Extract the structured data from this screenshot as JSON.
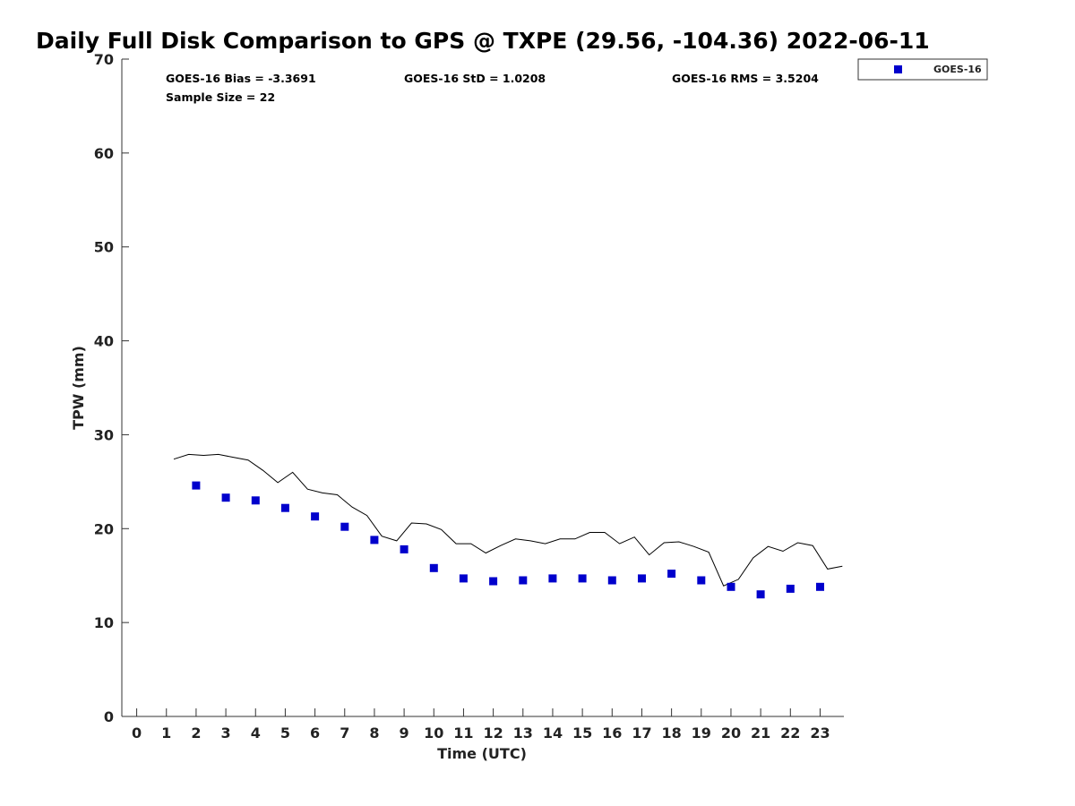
{
  "chart_data": {
    "type": "scatter",
    "title": "Daily Full Disk Comparison to GPS @ TXPE (29.56, -104.36) 2022-06-11",
    "xlabel": "Time (UTC)",
    "ylabel": "TPW (mm)",
    "xlim": [
      -0.5,
      23.8
    ],
    "ylim": [
      0,
      70
    ],
    "x_ticks": [
      "0",
      "1",
      "2",
      "3",
      "4",
      "5",
      "6",
      "7",
      "8",
      "9",
      "10",
      "11",
      "12",
      "13",
      "14",
      "15",
      "16",
      "17",
      "18",
      "19",
      "20",
      "21",
      "22",
      "23"
    ],
    "y_ticks": [
      "0",
      "10",
      "20",
      "30",
      "40",
      "50",
      "60",
      "70"
    ],
    "grid": false,
    "legend_position": "top-right",
    "stats": {
      "bias": "GOES-16 Bias = -3.3691",
      "std": "GOES-16 StD = 1.0208",
      "rms": "GOES-16 RMS = 3.5204",
      "sample": "Sample Size = 22"
    },
    "series": [
      {
        "name": "GOES-16",
        "marker": "square",
        "color": "#0000cc",
        "x": [
          2,
          3,
          4,
          5,
          6,
          7,
          8,
          9,
          10,
          11,
          12,
          13,
          14,
          15,
          16,
          17,
          18,
          19,
          20,
          21,
          22,
          23
        ],
        "y": [
          24.6,
          23.3,
          23.0,
          22.2,
          21.3,
          20.2,
          18.8,
          17.8,
          15.8,
          14.7,
          14.4,
          14.5,
          14.7,
          14.7,
          14.5,
          14.7,
          15.2,
          14.5,
          13.8,
          13.0,
          13.6,
          13.8
        ]
      },
      {
        "marker": "line",
        "color": "#000000",
        "x": [
          1.25,
          1.75,
          2.25,
          2.75,
          3.25,
          3.75,
          4.25,
          4.75,
          5.25,
          5.75,
          6.25,
          6.75,
          7.25,
          7.75,
          8.25,
          8.75,
          9.25,
          9.75,
          10.25,
          10.75,
          11.25,
          11.75,
          12.25,
          12.75,
          13.25,
          13.75,
          14.25,
          14.75,
          15.25,
          15.75,
          16.25,
          16.75,
          17.25,
          17.75,
          18.25,
          18.75,
          19.25,
          19.75,
          20.25,
          20.75,
          21.25,
          21.75,
          22.25,
          22.75,
          23.25,
          23.75
        ],
        "y": [
          27.4,
          27.9,
          27.8,
          27.9,
          27.6,
          27.3,
          26.2,
          24.9,
          26.0,
          24.2,
          23.8,
          23.6,
          22.3,
          21.4,
          19.2,
          18.7,
          20.6,
          20.5,
          19.9,
          18.4,
          18.4,
          17.4,
          18.2,
          18.9,
          18.7,
          18.4,
          18.9,
          18.9,
          19.6,
          19.6,
          18.4,
          19.1,
          17.2,
          18.5,
          18.6,
          18.1,
          17.5,
          13.9,
          14.6,
          16.9,
          18.1,
          17.6,
          18.5,
          18.2,
          15.7,
          16.0
        ]
      }
    ]
  }
}
